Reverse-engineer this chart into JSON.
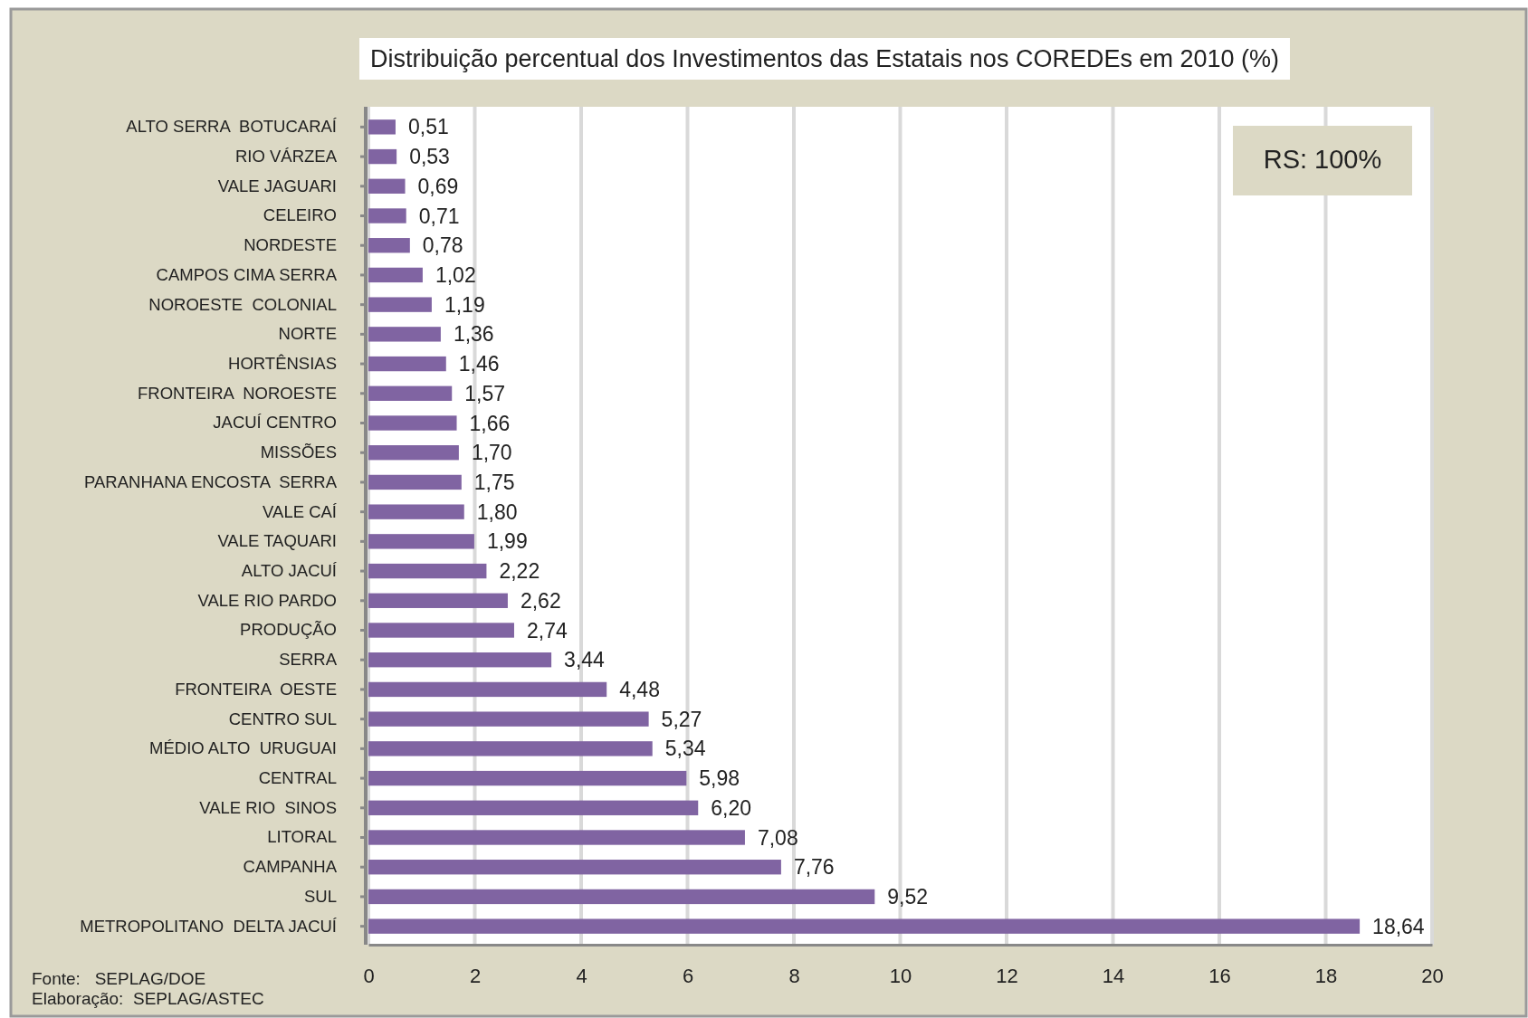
{
  "chart_data": {
    "type": "bar",
    "orientation": "horizontal",
    "title": "Distribuição percentual dos Investimentos das Estatais  nos COREDEs em 2010 (%)",
    "categories": [
      "ALTO SERRA  BOTUCARAÍ",
      "RIO VÁRZEA",
      "VALE JAGUARI",
      "CELEIRO",
      "NORDESTE",
      "CAMPOS CIMA SERRA",
      "NOROESTE  COLONIAL",
      "NORTE",
      "HORTÊNSIAS",
      "FRONTEIRA  NOROESTE",
      "JACUÍ CENTRO",
      "MISSÕES",
      "PARANHANA ENCOSTA  SERRA",
      "VALE CAÍ",
      "VALE TAQUARI",
      "ALTO JACUÍ",
      "VALE RIO PARDO",
      "PRODUÇÃO",
      "SERRA",
      "FRONTEIRA  OESTE",
      "CENTRO SUL",
      "MÉDIO ALTO  URUGUAI",
      "CENTRAL",
      "VALE RIO  SINOS",
      "LITORAL",
      "CAMPANHA",
      "SUL",
      "METROPOLITANO  DELTA JACUÍ"
    ],
    "values": [
      0.51,
      0.53,
      0.69,
      0.71,
      0.78,
      1.02,
      1.19,
      1.36,
      1.46,
      1.57,
      1.66,
      1.7,
      1.75,
      1.8,
      1.99,
      2.22,
      2.62,
      2.74,
      3.44,
      4.48,
      5.27,
      5.34,
      5.98,
      6.2,
      7.08,
      7.76,
      9.52,
      18.64
    ],
    "value_labels": [
      "0,51",
      "0,53",
      "0,69",
      "0,71",
      "0,78",
      "1,02",
      "1,19",
      "1,36",
      "1,46",
      "1,57",
      "1,66",
      "1,70",
      "1,75",
      "1,80",
      "1,99",
      "2,22",
      "2,62",
      "2,74",
      "3,44",
      "4,48",
      "5,27",
      "5,34",
      "5,98",
      "6,20",
      "7,08",
      "7,76",
      "9,52",
      "18,64"
    ],
    "color": "#8064a2",
    "xlim": [
      0,
      20
    ],
    "xticks": [
      0,
      2,
      4,
      6,
      8,
      10,
      12,
      14,
      16,
      18,
      20
    ],
    "grid": "x",
    "annotations": [
      "RS: 100%",
      "Fonte:   SEPLAG/DOE",
      "Elaboração:  SEPLAG/ASTEC"
    ]
  }
}
